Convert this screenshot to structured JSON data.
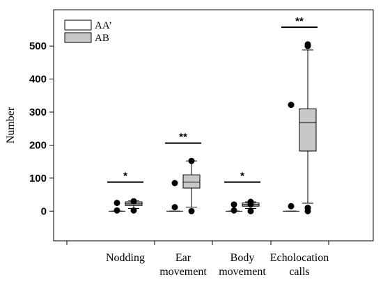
{
  "chart_data": {
    "type": "box",
    "ylabel": "Number",
    "ylim": [
      -90,
      610
    ],
    "yticks": [
      0,
      100,
      200,
      300,
      400,
      500
    ],
    "categories": [
      {
        "lines": [
          "Nodding"
        ]
      },
      {
        "lines": [
          "Ear",
          "movement"
        ]
      },
      {
        "lines": [
          "Body",
          "movement"
        ]
      },
      {
        "lines": [
          "Echolocation",
          "calls"
        ]
      }
    ],
    "legend": [
      {
        "label": "AA’",
        "color": "#ffffff"
      },
      {
        "label": "AB",
        "color": "#c8c8c8"
      }
    ],
    "series": [
      {
        "name": "AA’",
        "color": "#ffffff",
        "boxes": [
          {
            "q1": 0,
            "median": 0,
            "q3": 0,
            "whisker_low": 0,
            "whisker_high": 0,
            "outliers": [
              2,
              25
            ]
          },
          {
            "q1": 0,
            "median": 0,
            "q3": 0,
            "whisker_low": 0,
            "whisker_high": 0,
            "outliers": [
              12,
              85
            ]
          },
          {
            "q1": 0,
            "median": 0,
            "q3": 0,
            "whisker_low": 0,
            "whisker_high": 0,
            "outliers": [
              2,
              20
            ]
          },
          {
            "q1": 0,
            "median": 0,
            "q3": 0,
            "whisker_low": 0,
            "whisker_high": 0,
            "outliers": [
              15,
              322
            ]
          }
        ]
      },
      {
        "name": "AB",
        "color": "#c8c8c8",
        "boxes": [
          {
            "q1": 17,
            "median": 22,
            "q3": 28,
            "whisker_low": 8,
            "whisker_high": 31,
            "outliers": [
              2,
              30
            ]
          },
          {
            "q1": 70,
            "median": 88,
            "q3": 110,
            "whisker_low": 12,
            "whisker_high": 152,
            "outliers": [
              0,
              152
            ]
          },
          {
            "q1": 15,
            "median": 20,
            "q3": 25,
            "whisker_low": 8,
            "whisker_high": 28,
            "outliers": [
              0,
              20,
              28
            ]
          },
          {
            "q1": 182,
            "median": 268,
            "q3": 310,
            "whisker_low": 24,
            "whisker_high": 488,
            "outliers": [
              0,
              10,
              500,
              505
            ]
          }
        ]
      }
    ],
    "significance": [
      {
        "label": "*",
        "y": 88
      },
      {
        "label": "**",
        "y": 206
      },
      {
        "label": "*",
        "y": 88
      },
      {
        "label": "**",
        "y": 557
      }
    ]
  }
}
